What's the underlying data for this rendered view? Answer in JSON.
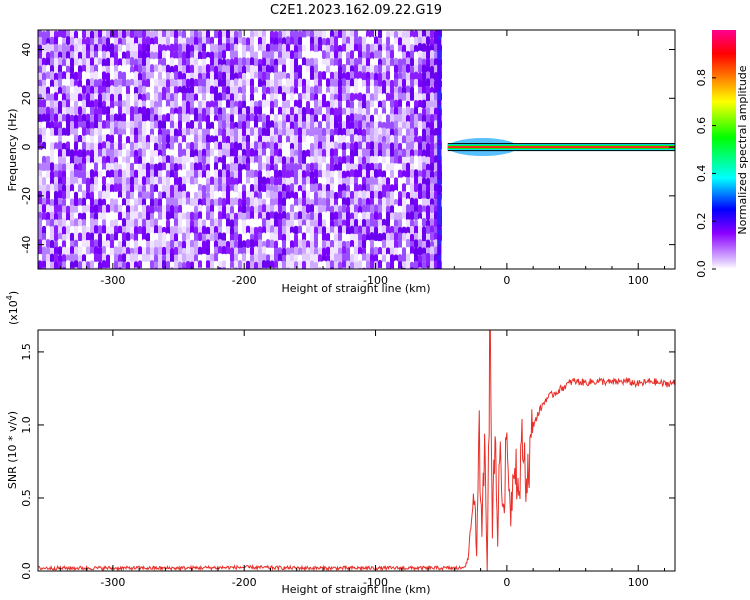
{
  "title": "C2E1.2023.162.09.22.G19",
  "chart_data": [
    {
      "type": "heatmap",
      "xlabel": "Height of straight line (km)",
      "ylabel": "Frequency (Hz)",
      "xlim": [
        -357,
        128
      ],
      "ylim": [
        -50,
        48
      ],
      "xticks": [
        -300,
        -200,
        -100,
        0,
        100
      ],
      "yticks": [
        -40,
        -20,
        0,
        20,
        40
      ],
      "noise_region_x": [
        -357,
        -50
      ],
      "signal_line": {
        "x": [
          -45,
          128
        ],
        "frequency": 0
      },
      "colorbar": {
        "label": "Normalized spectral amplitude",
        "range": [
          0,
          1
        ],
        "ticks": [
          0.0,
          0.2,
          0.4,
          0.6,
          0.8
        ],
        "colors": [
          "#ffffff",
          "#d8b8ff",
          "#8a00ff",
          "#0000ff",
          "#00ffff",
          "#00ff00",
          "#ffff00",
          "#ff8000",
          "#ff0000",
          "#ff0090"
        ]
      }
    },
    {
      "type": "line",
      "xlabel": "Height of straight line (km)",
      "ylabel": "SNR (10 * v/v)",
      "y_multiplier": "(x10",
      "y_multiplier_exp": "4",
      "y_multiplier_close": ")",
      "xlim": [
        -357,
        128
      ],
      "ylim": [
        0,
        1.65
      ],
      "xticks": [
        -300,
        -200,
        -100,
        0,
        100
      ],
      "yticks": [
        0.0,
        0.5,
        1.0,
        1.5
      ],
      "color": "#e8302a",
      "series": [
        {
          "x": [
            -357,
            -300,
            -250,
            -200,
            -150,
            -100,
            -60,
            -35,
            -30,
            -27,
            -25,
            -23,
            -21,
            -19,
            -17,
            -15,
            -13,
            -11,
            -9,
            -7,
            -5,
            -3,
            0,
            3,
            6,
            9,
            12,
            15,
            20,
            25,
            30,
            40,
            50,
            60,
            70,
            80,
            90,
            100,
            110,
            120,
            128
          ],
          "y": [
            0.02,
            0.02,
            0.02,
            0.025,
            0.02,
            0.02,
            0.02,
            0.02,
            0.05,
            0.35,
            0.6,
            0.1,
            0.9,
            0.2,
            1.0,
            0.05,
            1.65,
            0.3,
            1.05,
            0.2,
            0.95,
            0.35,
            0.9,
            0.4,
            0.85,
            0.5,
            0.9,
            0.6,
            1.0,
            1.1,
            1.18,
            1.24,
            1.3,
            1.29,
            1.3,
            1.29,
            1.3,
            1.28,
            1.3,
            1.28,
            1.29
          ]
        }
      ]
    }
  ]
}
